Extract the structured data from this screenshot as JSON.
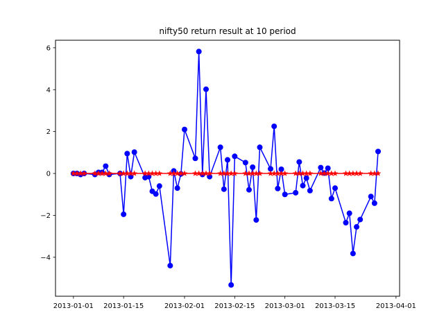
{
  "chart_data": {
    "type": "line",
    "title": "nifty50 return result at 10 period",
    "xlabel": "",
    "ylabel": "",
    "x_start": "2013-01-01",
    "x_ticks": [
      "2013-01-01",
      "2013-01-15",
      "2013-02-01",
      "2013-02-15",
      "2013-03-01",
      "2013-03-15",
      "2013-04-01"
    ],
    "xlim": [
      "2012-12-27",
      "2013-04-02"
    ],
    "y_ticks": [
      -4,
      -2,
      0,
      2,
      4,
      6
    ],
    "ylim": [
      -5.86,
      6.36
    ],
    "grid": false,
    "legend": "none",
    "series": [
      {
        "color": "#0000ff",
        "marker": "circle",
        "points": [
          [
            "2013-01-01",
            0.0
          ],
          [
            "2013-01-02",
            0.0
          ],
          [
            "2013-01-03",
            -0.05
          ],
          [
            "2013-01-04",
            0.0
          ],
          [
            "2013-01-07",
            -0.05
          ],
          [
            "2013-01-08",
            0.05
          ],
          [
            "2013-01-09",
            0.05
          ],
          [
            "2013-01-10",
            0.35
          ],
          [
            "2013-01-11",
            -0.05
          ],
          [
            "2013-01-14",
            0.0
          ],
          [
            "2013-01-15",
            -1.95
          ],
          [
            "2013-01-16",
            0.95
          ],
          [
            "2013-01-17",
            -0.15
          ],
          [
            "2013-01-18",
            1.02
          ],
          [
            "2013-01-21",
            -0.2
          ],
          [
            "2013-01-22",
            -0.15
          ],
          [
            "2013-01-23",
            -0.85
          ],
          [
            "2013-01-24",
            -0.98
          ],
          [
            "2013-01-25",
            -0.6
          ],
          [
            "2013-01-28",
            -4.4
          ],
          [
            "2013-01-29",
            0.12
          ],
          [
            "2013-01-30",
            -0.7
          ],
          [
            "2013-01-31",
            -0.02
          ],
          [
            "2013-02-01",
            2.1
          ],
          [
            "2013-02-04",
            0.72
          ],
          [
            "2013-02-05",
            5.82
          ],
          [
            "2013-02-06",
            -0.05
          ],
          [
            "2013-02-07",
            4.02
          ],
          [
            "2013-02-08",
            -0.15
          ],
          [
            "2013-02-11",
            1.25
          ],
          [
            "2013-02-12",
            -0.75
          ],
          [
            "2013-02-13",
            0.65
          ],
          [
            "2013-02-14",
            -5.32
          ],
          [
            "2013-02-15",
            0.82
          ],
          [
            "2013-02-18",
            0.52
          ],
          [
            "2013-02-19",
            -0.78
          ],
          [
            "2013-02-20",
            0.3
          ],
          [
            "2013-02-21",
            -2.22
          ],
          [
            "2013-02-22",
            1.25
          ],
          [
            "2013-02-25",
            0.22
          ],
          [
            "2013-02-26",
            2.25
          ],
          [
            "2013-02-27",
            -0.72
          ],
          [
            "2013-02-28",
            0.2
          ],
          [
            "2013-03-01",
            -1.0
          ],
          [
            "2013-03-04",
            -0.92
          ],
          [
            "2013-03-05",
            0.55
          ],
          [
            "2013-03-06",
            -0.58
          ],
          [
            "2013-03-07",
            -0.22
          ],
          [
            "2013-03-08",
            -0.82
          ],
          [
            "2013-03-11",
            0.28
          ],
          [
            "2013-03-12",
            0.02
          ],
          [
            "2013-03-13",
            0.25
          ],
          [
            "2013-03-14",
            -1.2
          ],
          [
            "2013-03-15",
            -0.7
          ],
          [
            "2013-03-18",
            -2.35
          ],
          [
            "2013-03-19",
            -1.9
          ],
          [
            "2013-03-20",
            -3.82
          ],
          [
            "2013-03-21",
            -2.55
          ],
          [
            "2013-03-22",
            -2.2
          ],
          [
            "2013-03-25",
            -1.1
          ],
          [
            "2013-03-26",
            -1.42
          ],
          [
            "2013-03-27",
            1.05
          ]
        ]
      },
      {
        "color": "#ff0000",
        "marker": "star",
        "points": [
          [
            "2013-01-01",
            0
          ],
          [
            "2013-01-02",
            0
          ],
          [
            "2013-01-03",
            0
          ],
          [
            "2013-01-04",
            0
          ],
          [
            "2013-01-07",
            0
          ],
          [
            "2013-01-08",
            0
          ],
          [
            "2013-01-09",
            0
          ],
          [
            "2013-01-10",
            0
          ],
          [
            "2013-01-11",
            0
          ],
          [
            "2013-01-14",
            0
          ],
          [
            "2013-01-15",
            0
          ],
          [
            "2013-01-16",
            0
          ],
          [
            "2013-01-17",
            0
          ],
          [
            "2013-01-18",
            0
          ],
          [
            "2013-01-21",
            0
          ],
          [
            "2013-01-22",
            0
          ],
          [
            "2013-01-23",
            0
          ],
          [
            "2013-01-24",
            0
          ],
          [
            "2013-01-25",
            0
          ],
          [
            "2013-01-28",
            0
          ],
          [
            "2013-01-29",
            0
          ],
          [
            "2013-01-30",
            0
          ],
          [
            "2013-01-31",
            0
          ],
          [
            "2013-02-01",
            0
          ],
          [
            "2013-02-04",
            0
          ],
          [
            "2013-02-05",
            0
          ],
          [
            "2013-02-06",
            0
          ],
          [
            "2013-02-07",
            0
          ],
          [
            "2013-02-08",
            0
          ],
          [
            "2013-02-11",
            0
          ],
          [
            "2013-02-12",
            0
          ],
          [
            "2013-02-13",
            0
          ],
          [
            "2013-02-14",
            0
          ],
          [
            "2013-02-15",
            0
          ],
          [
            "2013-02-18",
            0
          ],
          [
            "2013-02-19",
            0
          ],
          [
            "2013-02-20",
            0
          ],
          [
            "2013-02-21",
            0
          ],
          [
            "2013-02-22",
            0
          ],
          [
            "2013-02-25",
            0
          ],
          [
            "2013-02-26",
            0
          ],
          [
            "2013-02-27",
            0
          ],
          [
            "2013-02-28",
            0
          ],
          [
            "2013-03-01",
            0
          ],
          [
            "2013-03-04",
            0
          ],
          [
            "2013-03-05",
            0
          ],
          [
            "2013-03-06",
            0
          ],
          [
            "2013-03-07",
            0
          ],
          [
            "2013-03-08",
            0
          ],
          [
            "2013-03-11",
            0
          ],
          [
            "2013-03-12",
            0
          ],
          [
            "2013-03-13",
            0
          ],
          [
            "2013-03-14",
            0
          ],
          [
            "2013-03-15",
            0
          ],
          [
            "2013-03-18",
            0
          ],
          [
            "2013-03-19",
            0
          ],
          [
            "2013-03-20",
            0
          ],
          [
            "2013-03-21",
            0
          ],
          [
            "2013-03-22",
            0
          ],
          [
            "2013-03-25",
            0
          ],
          [
            "2013-03-26",
            0
          ],
          [
            "2013-03-27",
            0
          ]
        ]
      }
    ]
  }
}
